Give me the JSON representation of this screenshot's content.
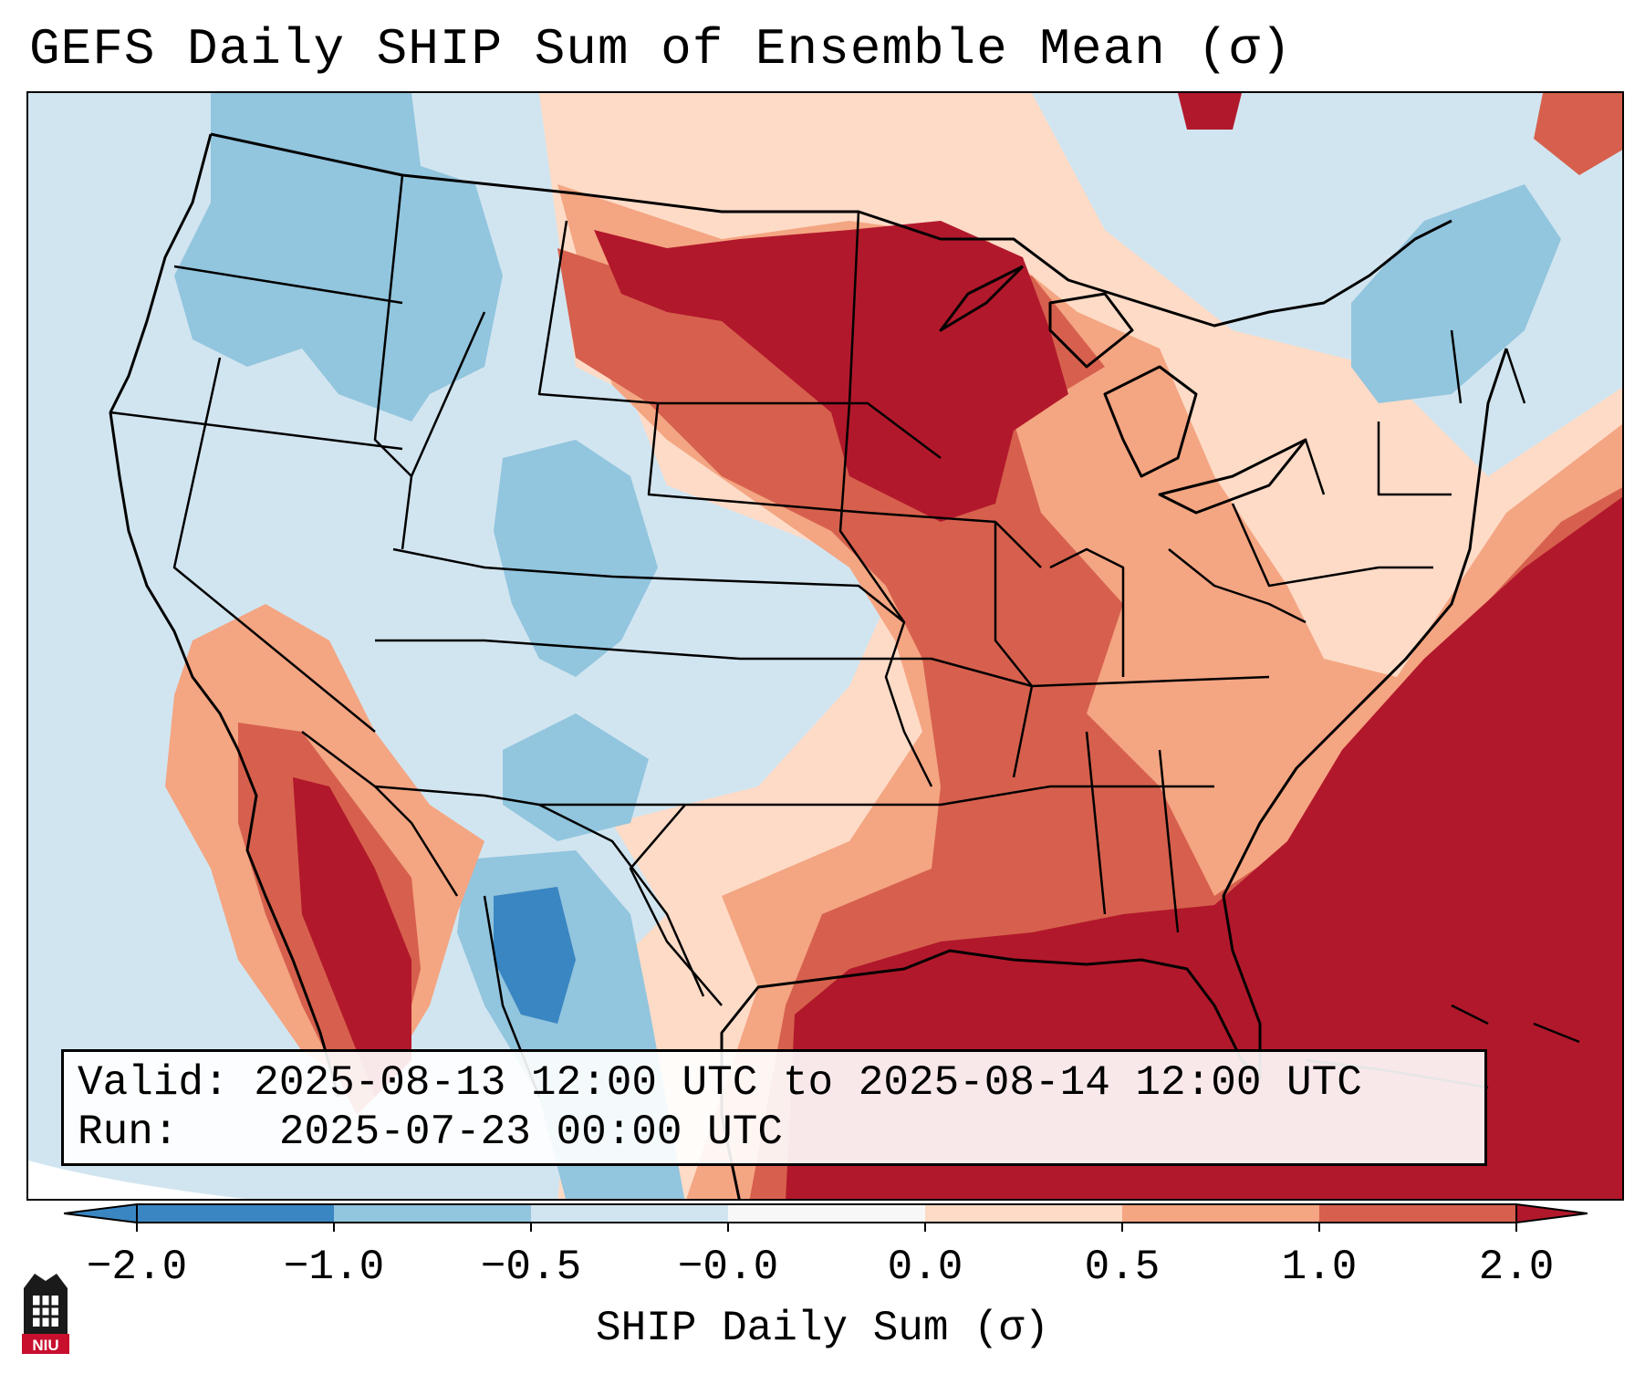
{
  "title": "GEFS Daily SHIP Sum of Ensemble Mean (σ)",
  "info": {
    "valid_label": "Valid:",
    "valid_value": "2025-08-13 12:00 UTC to 2025-08-14 12:00 UTC",
    "run_label": "Run:",
    "run_value": "2025-07-23 00:00 UTC"
  },
  "colorbar": {
    "label": "SHIP Daily Sum (σ)",
    "ticks": [
      "−2.0",
      "−1.0",
      "−0.5",
      "−0.0",
      "0.0",
      "0.5",
      "1.0",
      "2.0"
    ],
    "bin_colors": [
      "#3a86c2",
      "#92c5de",
      "#d1e5f0",
      "#f7f7f7",
      "#fddbc7",
      "#f4a582",
      "#d6604d",
      "#b2182b"
    ]
  },
  "map": {
    "ocean_color": "#d1e5f0",
    "outside_color": "#ffffff",
    "border_color": "#000000"
  },
  "logo": {
    "text": "NIU",
    "color": "#c8102e"
  }
}
